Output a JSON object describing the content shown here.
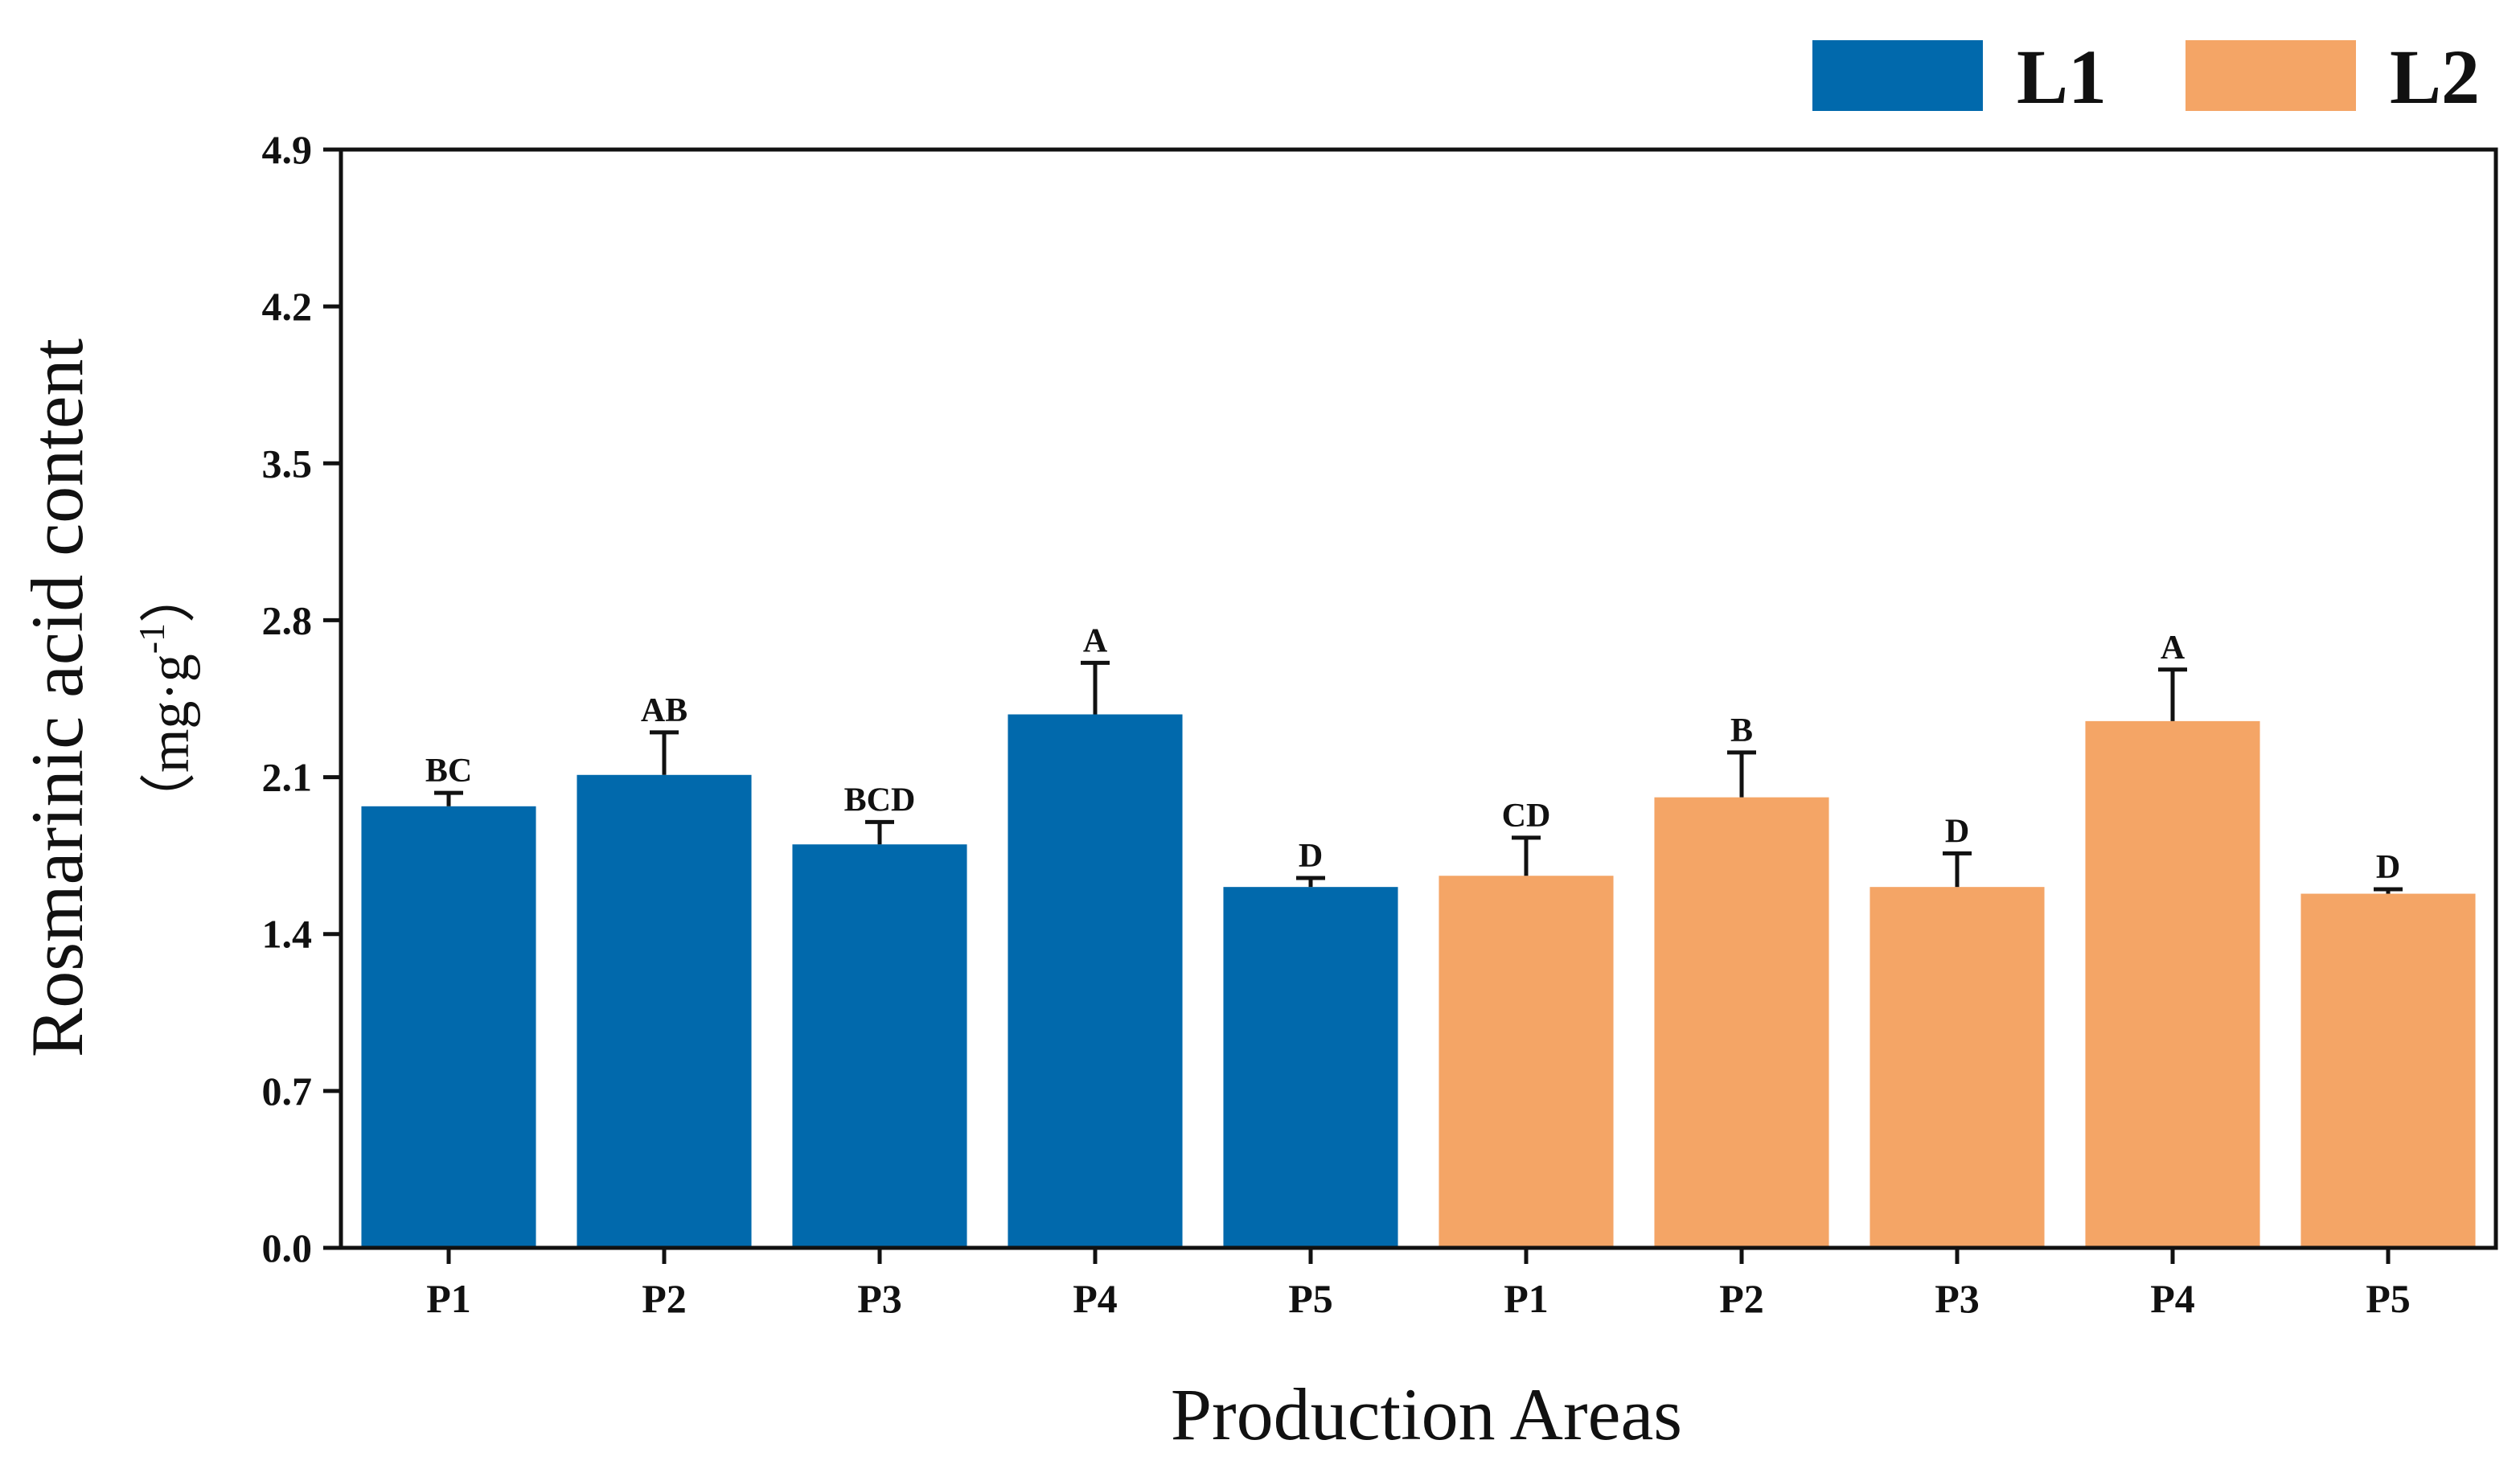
{
  "chart_data": {
    "type": "bar",
    "title": "",
    "xlabel": "Production Areas",
    "ylabel": "Rosmarinic acid content",
    "yunit": "（mg·g",
    "yunit_sup": "-1",
    "yunit_close": "）",
    "ylim": [
      0.0,
      4.9
    ],
    "yticks": [
      "0.0",
      "0.7",
      "1.4",
      "2.1",
      "2.8",
      "3.5",
      "4.2",
      "4.9"
    ],
    "grid": false,
    "legend_position": "top-right",
    "categories": [
      "P1",
      "P2",
      "P3",
      "P4",
      "P5"
    ],
    "series": [
      {
        "name": "L1",
        "color": "#0169ac",
        "values": [
          1.97,
          2.11,
          1.8,
          2.38,
          1.61
        ],
        "errors": [
          0.06,
          0.19,
          0.1,
          0.23,
          0.04
        ],
        "letters": [
          "BC",
          "AB",
          "BCD",
          "A",
          "D"
        ]
      },
      {
        "name": "L2",
        "color": "#f4a566",
        "values": [
          1.66,
          2.01,
          1.61,
          2.35,
          1.58
        ],
        "errors": [
          0.17,
          0.2,
          0.15,
          0.23,
          0.02
        ],
        "letters": [
          "CD",
          "B",
          "D",
          "A",
          "D"
        ]
      }
    ]
  }
}
